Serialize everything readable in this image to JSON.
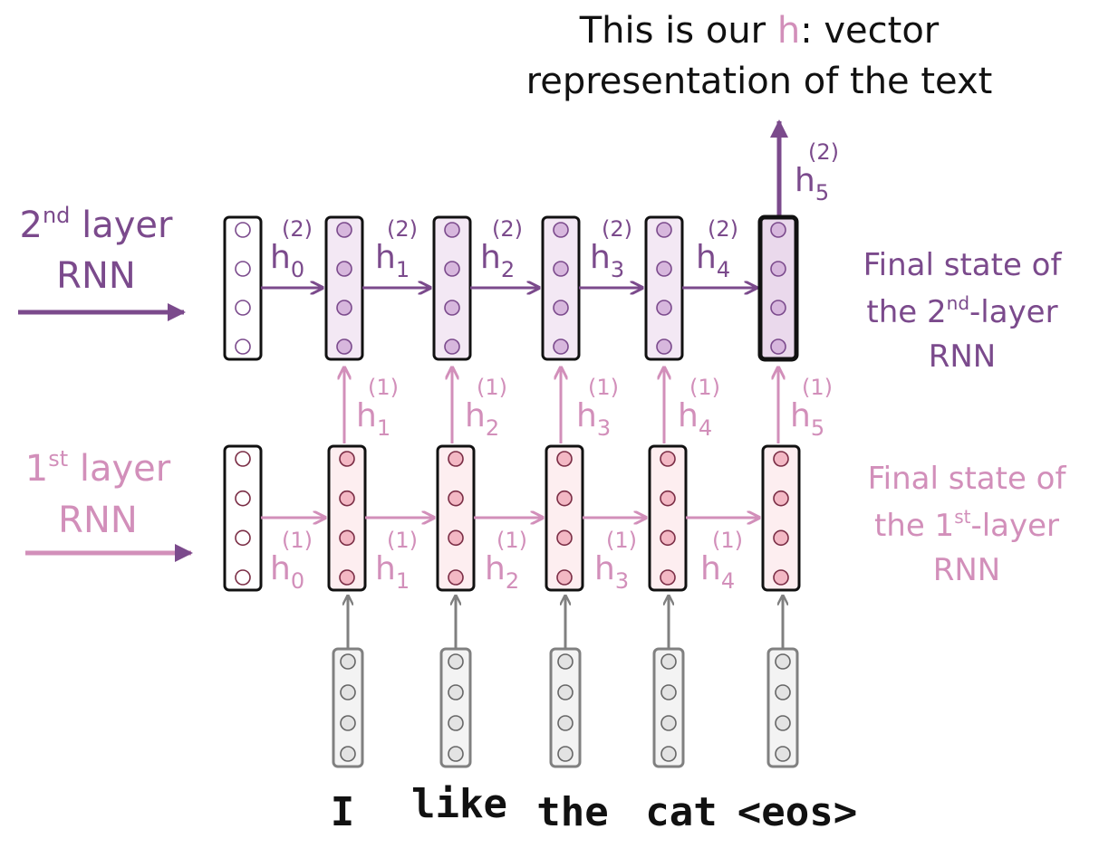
{
  "title": {
    "line1_pre": "This is our ",
    "line1_h": "h",
    "line1_post": ": vector",
    "line2": "representation of the text"
  },
  "layer2_label": {
    "line1_base": "2",
    "line1_sup": "nd",
    "line1_rest": " layer",
    "line2": "RNN"
  },
  "layer1_label": {
    "line1_base": "1",
    "line1_sup": "st",
    "line1_rest": " layer",
    "line2": "RNN"
  },
  "final2": {
    "line1": "Final state of",
    "line2_pre": "the 2",
    "line2_sup": "nd",
    "line2_post": "-layer",
    "line3": "RNN"
  },
  "final1": {
    "line1": "Final state of",
    "line2_pre": "the 1",
    "line2_sup": "st",
    "line2_post": "-layer",
    "line3": "RNN"
  },
  "words": [
    "I",
    "like",
    "the",
    "cat",
    "<eos>"
  ],
  "state_letter": "h",
  "layer2_sup": "(2)",
  "layer1_sup": "(1)",
  "layer2_horizontal_subs": [
    "0",
    "1",
    "2",
    "3",
    "4"
  ],
  "layer1_horizontal_subs": [
    "0",
    "1",
    "2",
    "3",
    "4"
  ],
  "layer1_vertical_subs": [
    "1",
    "2",
    "3",
    "4",
    "5"
  ],
  "output_sub": "5",
  "colors": {
    "layer2": "#7b4a8c",
    "layer1": "#d28fba",
    "input": "#808080",
    "layer2_fill": "#f3e8f4",
    "layer2_dot": "#d7b7dd",
    "layer1_fill": "#fdeef0",
    "layer1_dot": "#f3b8c4",
    "input_dot": "#e3e3e3"
  }
}
